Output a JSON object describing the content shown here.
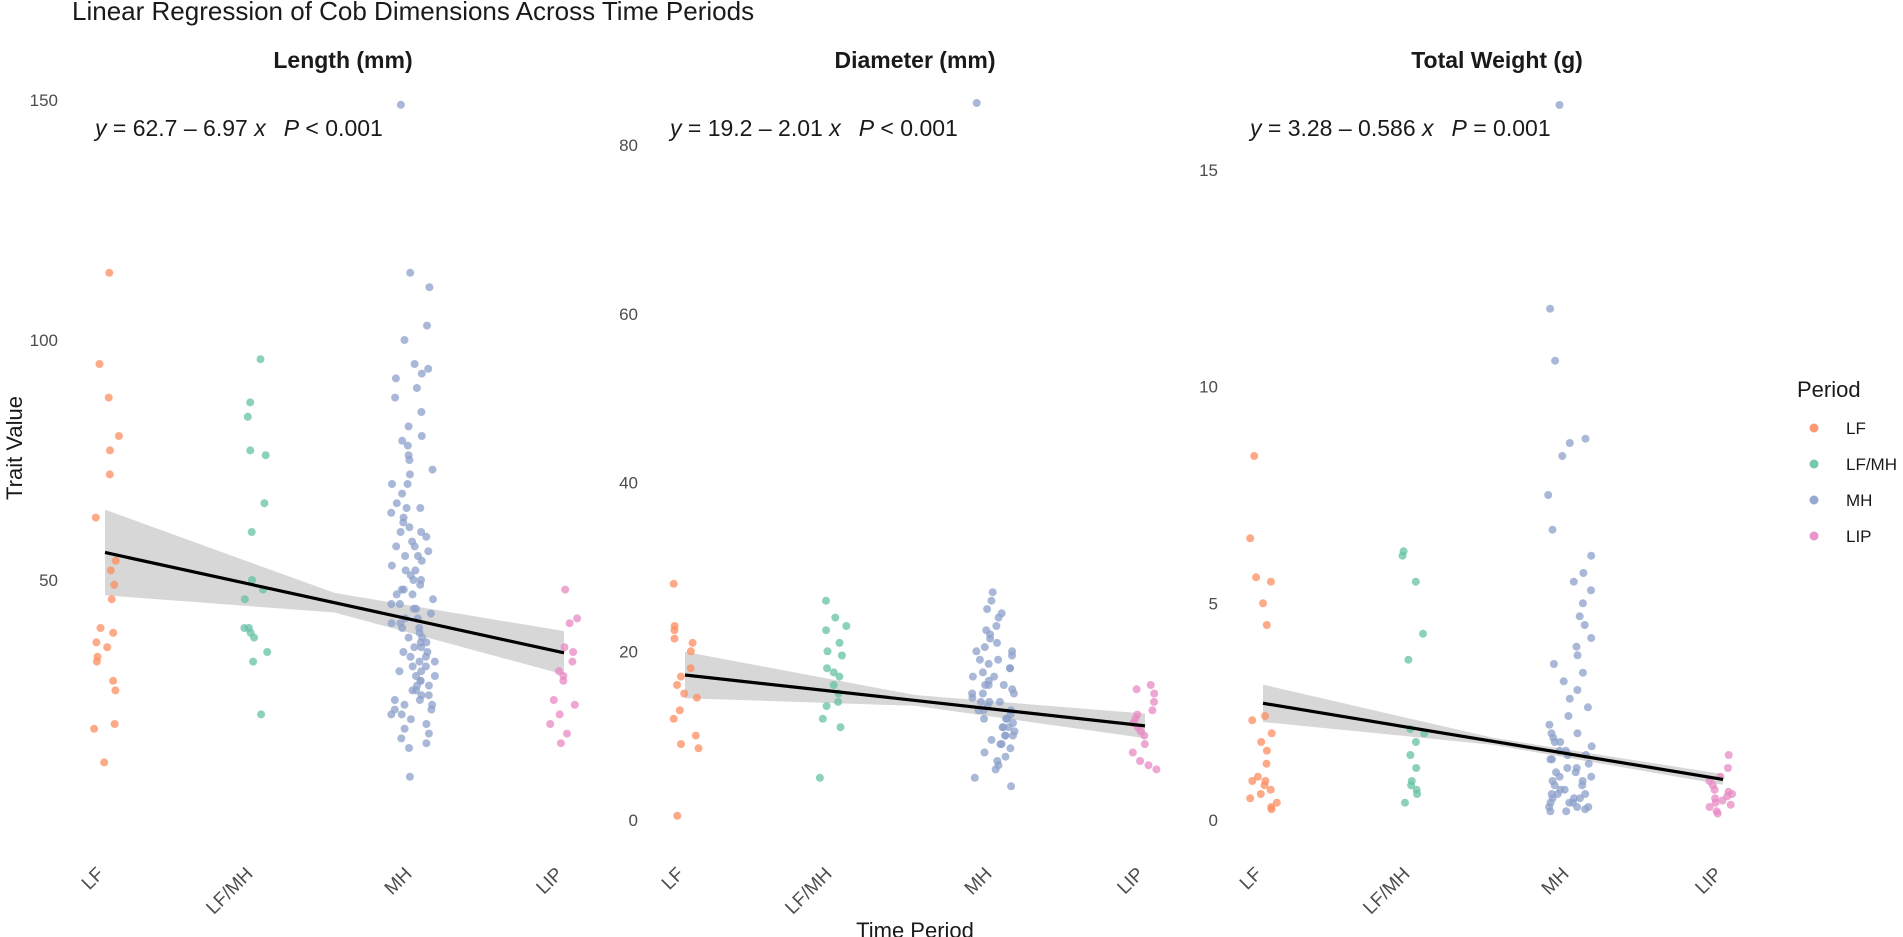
{
  "chart_data": {
    "type": "scatter",
    "title": "Linear Regression of Cob Dimensions Across Time Periods",
    "xlabel": "Time Period",
    "ylabel": "Trait Value",
    "categories": [
      "LF",
      "LF/MH",
      "MH",
      "LIP"
    ],
    "legend": {
      "title": "Period",
      "placement": "right",
      "entries": [
        {
          "label": "LF",
          "color": "#fc8d62"
        },
        {
          "label": "LF/MH",
          "color": "#66c2a5"
        },
        {
          "label": "MH",
          "color": "#8da0cb"
        },
        {
          "label": "LIP",
          "color": "#e78ac3"
        }
      ]
    },
    "grid": false,
    "panels": [
      {
        "title": "Length (mm)",
        "ylim": [
          0,
          150
        ],
        "yticks": [
          50,
          100,
          150
        ],
        "regression": {
          "intercept": 62.7,
          "slope": -6.97,
          "equation": "y = 62.7 – 6.97 x",
          "p_text": "P < 0.001",
          "y_eq": "y",
          "eq_rest": " = 62.7 – 6.97 ",
          "x_eq": "x",
          "p_sym": "P",
          "p_rest": " < 0.001"
        },
        "points": {
          "LF": [
            114,
            95,
            88,
            80,
            77,
            72,
            63,
            54,
            52,
            49,
            46,
            40,
            39,
            37,
            36,
            34,
            33,
            29,
            27,
            20,
            19,
            12
          ],
          "LF/MH": [
            96,
            87,
            84,
            77,
            76,
            66,
            60,
            50,
            48,
            46,
            40,
            40,
            39,
            38,
            35,
            33,
            22
          ],
          "MH": [
            149,
            114,
            111,
            103,
            100,
            95,
            94,
            93,
            92,
            90,
            88,
            85,
            82,
            80,
            79,
            78,
            76,
            75,
            73,
            72,
            70,
            68,
            66,
            65,
            64,
            63,
            62,
            61,
            60,
            59,
            58,
            57,
            56,
            55,
            54,
            53,
            52,
            51,
            50,
            49,
            48,
            47,
            46,
            45,
            44,
            43,
            42,
            41,
            40,
            39,
            38,
            37,
            36,
            35,
            34,
            33,
            32,
            31,
            30,
            29,
            28,
            27,
            26,
            25,
            24,
            23,
            22,
            21,
            20,
            19,
            18,
            17,
            16,
            15,
            9,
            45,
            42,
            38,
            35,
            32,
            30,
            28,
            26,
            24,
            22,
            40,
            36,
            33,
            31,
            29,
            27,
            25,
            23,
            50,
            47,
            44,
            41,
            37,
            34,
            55,
            60,
            65,
            70,
            48,
            52,
            57
          ],
          "LIP": [
            48,
            42,
            41,
            36,
            35,
            33,
            31,
            30,
            29,
            25,
            24,
            22,
            20,
            18,
            16
          ]
        }
      },
      {
        "title": "Diameter (mm)",
        "ylim": [
          0,
          85
        ],
        "yticks": [
          0,
          20,
          40,
          60,
          80
        ],
        "regression": {
          "intercept": 19.2,
          "slope": -2.01,
          "equation": "y = 19.2 – 2.01 x",
          "p_text": "P < 0.001",
          "y_eq": "y",
          "eq_rest": " = 19.2 – 2.01 ",
          "x_eq": "x",
          "p_sym": "P",
          "p_rest": " < 0.001"
        },
        "points": {
          "LF": [
            28,
            23,
            22.5,
            21.5,
            21,
            20,
            18,
            17,
            16,
            15,
            14.5,
            13,
            12,
            10,
            9,
            8.5,
            0.5
          ],
          "LF/MH": [
            26,
            24,
            23,
            22.5,
            21,
            20,
            19.5,
            18,
            17.5,
            17,
            16,
            15,
            14,
            13.5,
            12,
            11,
            5
          ],
          "MH": [
            85,
            27,
            26,
            25,
            24.5,
            24,
            23,
            22.5,
            22,
            21.5,
            21,
            20.5,
            20,
            19.5,
            19,
            18.5,
            18,
            17.5,
            17,
            16.5,
            16,
            15.5,
            15,
            14.5,
            14,
            13.5,
            13,
            12.5,
            12,
            11.5,
            11,
            10.5,
            10,
            9.5,
            9,
            8.5,
            8,
            7.5,
            7,
            6.5,
            6,
            5,
            4,
            16,
            15,
            14,
            13,
            12,
            11,
            10,
            17,
            18,
            19,
            20,
            14,
            13,
            12,
            15,
            16,
            11,
            10,
            9
          ],
          "LIP": [
            16,
            15.5,
            15,
            14,
            13,
            12.5,
            12,
            11.5,
            11,
            10.5,
            10,
            9,
            8,
            7,
            6.5,
            6
          ]
        }
      },
      {
        "title": "Total Weight (g)",
        "ylim": [
          0,
          16.5
        ],
        "yticks": [
          0,
          5,
          10,
          15
        ],
        "regression": {
          "intercept": 3.28,
          "slope": -0.586,
          "equation": "y = 3.28 – 0.586 x",
          "p_text": "P = 0.001",
          "y_eq": "y",
          "eq_rest": " = 3.28 – 0.586 ",
          "x_eq": "x",
          "p_sym": "P",
          "p_rest": " = 0.001"
        },
        "points": {
          "LF": [
            8.4,
            6.5,
            5.6,
            5.5,
            5.0,
            4.5,
            2.4,
            2.3,
            2.0,
            1.8,
            1.6,
            1.3,
            1.0,
            0.9,
            0.9,
            0.8,
            0.7,
            0.6,
            0.5,
            0.4,
            0.3,
            0.25
          ],
          "LF/MH": [
            6.2,
            6.1,
            5.5,
            4.3,
            3.7,
            2.1,
            2.0,
            1.8,
            1.5,
            1.2,
            0.9,
            0.8,
            0.7,
            0.6,
            0.4
          ],
          "MH": [
            16.5,
            11.8,
            10.6,
            8.8,
            8.7,
            8.4,
            7.5,
            6.7,
            6.1,
            5.7,
            5.5,
            5.3,
            5.0,
            4.7,
            4.5,
            4.2,
            4.0,
            3.8,
            3.6,
            3.4,
            3.2,
            3.0,
            2.8,
            2.6,
            2.4,
            2.2,
            2.0,
            1.9,
            1.8,
            1.7,
            1.6,
            1.5,
            1.4,
            1.3,
            1.2,
            1.1,
            1.0,
            0.9,
            0.8,
            0.7,
            0.6,
            0.5,
            0.4,
            0.3,
            0.25,
            0.2,
            1.5,
            1.2,
            1.0,
            0.8,
            0.6,
            0.5,
            0.4,
            0.3,
            2.0,
            1.8,
            1.6,
            1.4,
            1.1,
            0.9,
            0.7,
            0.6,
            0.5,
            0.4,
            0.3,
            0.2
          ],
          "LIP": [
            1.5,
            1.2,
            1.0,
            0.9,
            0.8,
            0.7,
            0.65,
            0.6,
            0.55,
            0.5,
            0.45,
            0.4,
            0.35,
            0.3,
            0.2,
            0.15
          ]
        }
      }
    ]
  }
}
